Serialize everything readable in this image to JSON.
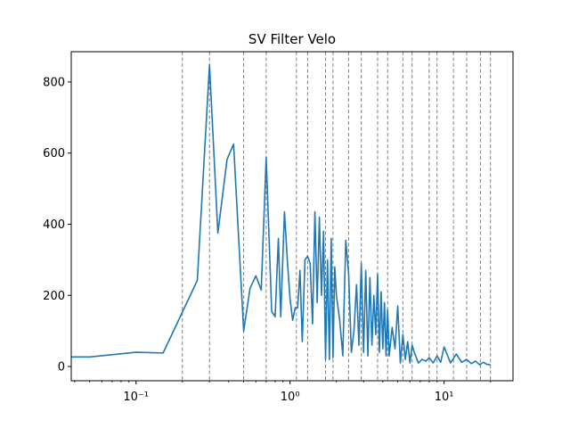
{
  "chart_data": {
    "type": "line",
    "title": "SV Filter Velo",
    "xlabel": "",
    "ylabel": "",
    "xscale": "log",
    "xlim": [
      0.038,
      28
    ],
    "ylim": [
      -40,
      885
    ],
    "grid": false,
    "line_color": "#1f77b4",
    "vline_color": "#808080",
    "yticks": [
      0,
      200,
      400,
      600,
      800
    ],
    "ytick_labels": [
      "0",
      "200",
      "400",
      "600",
      "800"
    ],
    "xticks": [
      0.1,
      1,
      10
    ],
    "xtick_labels": [
      "10⁻¹",
      "10⁰",
      "10¹"
    ],
    "vlines": [
      0.2,
      0.3,
      0.5,
      0.7,
      1.1,
      1.3,
      1.7,
      1.9,
      2.4,
      2.9,
      3.7,
      4.3,
      5.4,
      6.2,
      8.0,
      9.0,
      11.5,
      14.0,
      17.2,
      20.0
    ],
    "series": [
      {
        "name": "",
        "x": [
          0.038,
          0.05,
          0.1,
          0.15,
          0.25,
          0.3,
          0.34,
          0.39,
          0.43,
          0.5,
          0.55,
          0.6,
          0.65,
          0.7,
          0.76,
          0.8,
          0.84,
          0.87,
          0.92,
          0.96,
          1.0,
          1.04,
          1.08,
          1.12,
          1.16,
          1.2,
          1.25,
          1.3,
          1.35,
          1.4,
          1.45,
          1.5,
          1.55,
          1.6,
          1.65,
          1.7,
          1.75,
          1.8,
          1.85,
          1.9,
          1.95,
          2.0,
          2.1,
          2.2,
          2.3,
          2.4,
          2.5,
          2.6,
          2.7,
          2.8,
          2.9,
          3.0,
          3.1,
          3.2,
          3.3,
          3.4,
          3.5,
          3.6,
          3.7,
          3.8,
          3.9,
          4.0,
          4.1,
          4.2,
          4.3,
          4.4,
          4.6,
          4.8,
          5.0,
          5.2,
          5.4,
          5.6,
          5.8,
          6.0,
          6.2,
          6.4,
          6.8,
          7.2,
          7.6,
          8.0,
          8.5,
          9.0,
          9.5,
          10.0,
          11.0,
          12.0,
          13.0,
          14.0,
          15.0,
          16.0,
          17.0,
          18.0,
          19.0,
          20.0
        ],
        "values": [
          27,
          27,
          40,
          38,
          242,
          848,
          375,
          582,
          625,
          100,
          220,
          255,
          215,
          588,
          155,
          140,
          360,
          140,
          435,
          300,
          190,
          130,
          165,
          165,
          270,
          70,
          300,
          310,
          290,
          120,
          435,
          180,
          420,
          200,
          380,
          20,
          300,
          20,
          360,
          25,
          280,
          200,
          130,
          30,
          355,
          260,
          40,
          100,
          230,
          60,
          290,
          40,
          270,
          30,
          250,
          60,
          200,
          90,
          260,
          40,
          210,
          50,
          180,
          30,
          160,
          30,
          110,
          50,
          170,
          10,
          90,
          20,
          70,
          10,
          60,
          40,
          10,
          20,
          15,
          25,
          10,
          30,
          12,
          55,
          10,
          35,
          12,
          20,
          8,
          15,
          5,
          12,
          6,
          5
        ]
      }
    ]
  }
}
